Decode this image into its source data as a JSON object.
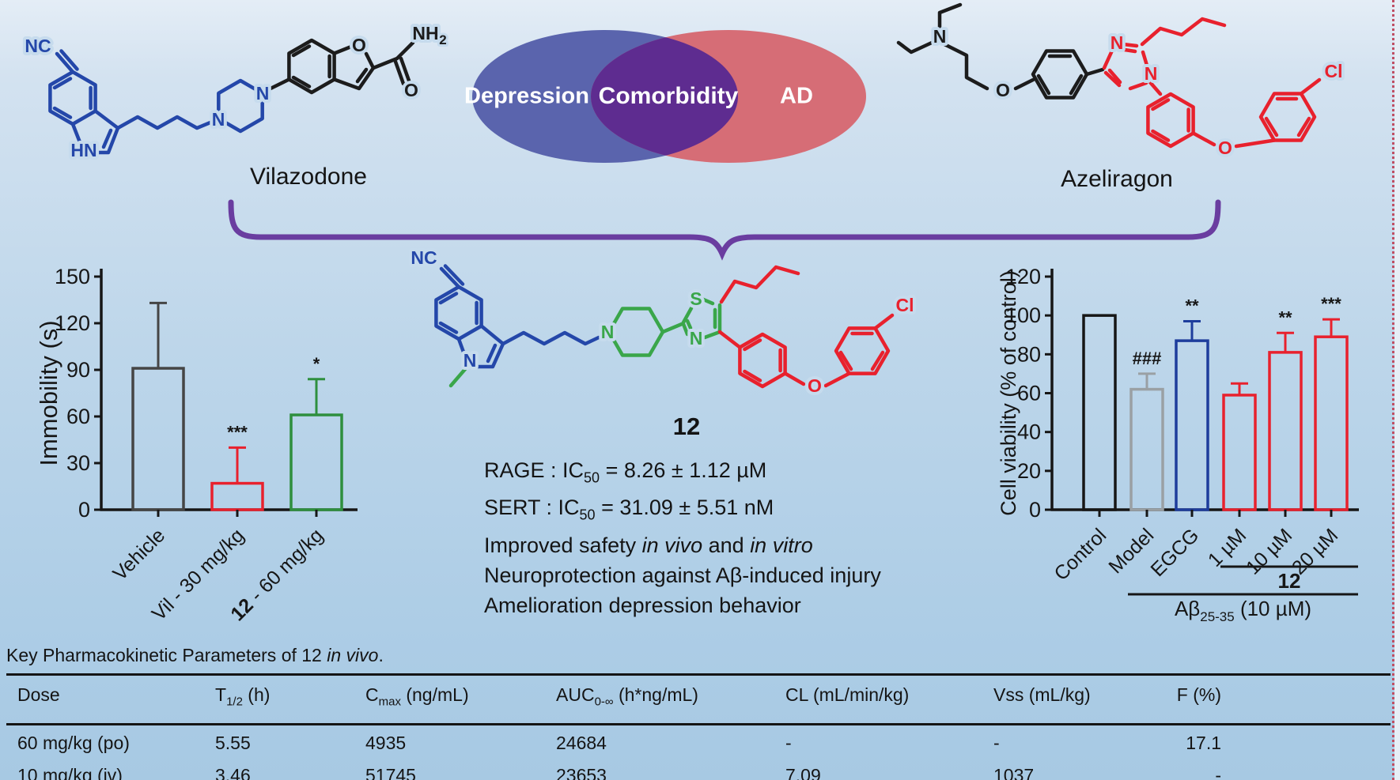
{
  "top": {
    "vilazodone_label": "Vilazodone",
    "azeliragon_label": "Azeliragon",
    "venn": {
      "left_label": "Depression",
      "overlap_label": "Comorbidity",
      "right_label": "AD"
    }
  },
  "structures": {
    "vilazodone": {
      "atoms": [
        "NC",
        "HN",
        "N",
        "N",
        "O",
        "O",
        "NH",
        "2"
      ]
    },
    "azeliragon": {
      "atoms": [
        "N",
        "O",
        "N",
        "N",
        "O",
        "Cl"
      ]
    },
    "compound12": {
      "atoms": [
        "NC",
        "N",
        "N",
        "S",
        "N",
        "O",
        "Cl"
      ],
      "label": "12"
    }
  },
  "compound_info": {
    "lines_html": [
      "RAGE : IC<sub>50</sub> = 8.26 &#177; 1.12 &#181;M",
      "SERT : IC<sub>50</sub> = 31.09 &#177; 5.51 nM",
      "Improved safety <i>in vivo</i> and <i>in vitro</i>",
      "Neuroprotection against A&#946;-induced injury",
      "Amelioration depression behavior"
    ]
  },
  "chart_data": [
    {
      "type": "bar",
      "title": "",
      "xlabel": "",
      "ylabel": "Immobility (s)",
      "ylim": [
        0,
        150
      ],
      "ytick_step": 30,
      "grid": false,
      "legend_position": "none",
      "categories": [
        [
          {
            "t": "Vehicle"
          }
        ],
        [
          {
            "t": "Vil - 30 mg/kg"
          }
        ],
        [
          {
            "t": "12",
            "b": true
          },
          {
            "t": " - 60 mg/kg"
          }
        ]
      ],
      "values": [
        91,
        17,
        61
      ],
      "errors": [
        42,
        23,
        23
      ],
      "significance": [
        "",
        "***",
        "*"
      ],
      "bar_colors": [
        "#454545",
        "#e8212d",
        "#2e8f3e"
      ]
    },
    {
      "type": "bar",
      "title": "",
      "xlabel": "",
      "ylabel": "Cell viability (% of control)",
      "ylim": [
        0,
        120
      ],
      "ytick_step": 20,
      "grid": false,
      "legend_position": "none",
      "categories": [
        [
          {
            "t": "Control"
          }
        ],
        [
          {
            "t": "Model"
          }
        ],
        [
          {
            "t": "EGCG"
          }
        ],
        [
          {
            "t": "1 µM"
          }
        ],
        [
          {
            "t": "10 µM"
          }
        ],
        [
          {
            "t": "20 µM"
          }
        ]
      ],
      "values": [
        100,
        62,
        87,
        59,
        81,
        89
      ],
      "errors": [
        0,
        8,
        10,
        6,
        10,
        9
      ],
      "significance": [
        "",
        "###",
        "**",
        "",
        "**",
        "***"
      ],
      "bar_colors": [
        "#161616",
        "#9aa0a4",
        "#1e3d9c",
        "#e8212d",
        "#e8212d",
        "#e8212d"
      ],
      "group_annotations": [
        {
          "from": 3,
          "to": 5,
          "label": [
            {
              "t": "12",
              "b": true
            }
          ]
        },
        {
          "from": 1,
          "to": 5,
          "label": [
            {
              "t": "Aβ"
            },
            {
              "t": "25-35",
              "sub": true
            },
            {
              "t": " (10 µM)"
            }
          ]
        }
      ]
    }
  ],
  "pk_table": {
    "caption_html": "Key Pharmacokinetic Parameters of 12 <i>in vivo</i>.",
    "headers_html": [
      "Dose",
      "T<sub>1/2</sub> (h)",
      "C<sub>max</sub> (ng/mL)",
      "AUC<sub>0-&#8734;</sub> (h*ng/mL)",
      "CL (mL/min/kg)",
      "Vss (mL/kg)",
      "F (%)"
    ],
    "rows": [
      [
        "60 mg/kg (po)",
        "5.55",
        "4935",
        "24684",
        "-",
        "-",
        "17.1"
      ],
      [
        "10 mg/kg (iv)",
        "3.46",
        "51745",
        "23653",
        "7.09",
        "1037",
        "-"
      ]
    ]
  },
  "colors": {
    "venn_blue": "#5a64ad",
    "venn_red": "#d66d76",
    "venn_overlap": "#5e2c90",
    "venn_overlap_text": "#f2e81e",
    "brace_purple": "#6a3da0",
    "structure_blue": "#2447a9",
    "structure_red": "#e8212d",
    "structure_green": "#3aa64a",
    "structure_black": "#1c1c1c"
  }
}
